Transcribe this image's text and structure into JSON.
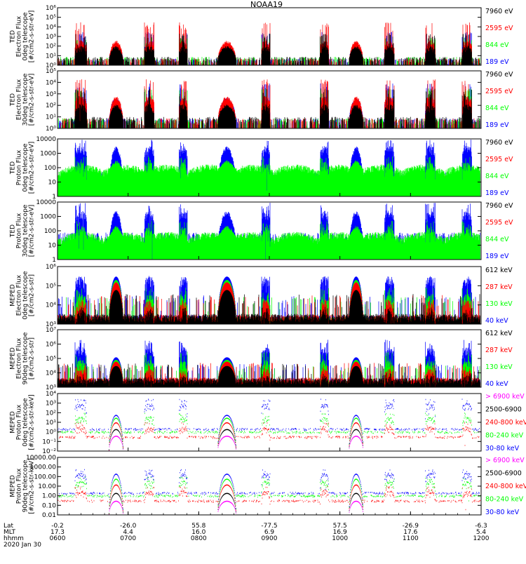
{
  "chart_data": {
    "type": "line",
    "title": "NOAA19",
    "colors": {
      "blue": "#0000ff",
      "red": "#ff0000",
      "green": "#00ff00",
      "black": "#000000",
      "magenta": "#ff00ff"
    },
    "x_axis": {
      "rows": [
        {
          "label": "Lat",
          "values": [
            "-0.2",
            "-26.0",
            "55.8",
            "-77.5",
            "57.5",
            "-26.9",
            "-6.3"
          ]
        },
        {
          "label": "MLT",
          "values": [
            "17.3",
            "4.4",
            "16.0",
            "6.9",
            "16.9",
            "17.6",
            "5.4"
          ]
        },
        {
          "label": "hhmm",
          "values": [
            "0600",
            "0700",
            "0800",
            "0900",
            "1000",
            "1100",
            "1200"
          ]
        }
      ],
      "date": "2020 Jan 30",
      "range_hours": [
        6,
        12
      ]
    },
    "passes": [
      {
        "center": 6.33,
        "width": 0.17,
        "type": "polar"
      },
      {
        "center": 6.83,
        "width": 0.2,
        "type": "saa"
      },
      {
        "center": 7.3,
        "width": 0.14,
        "type": "polar"
      },
      {
        "center": 7.78,
        "width": 0.12,
        "type": "polar"
      },
      {
        "center": 8.4,
        "width": 0.26,
        "type": "saa"
      },
      {
        "center": 8.95,
        "width": 0.12,
        "type": "polar"
      },
      {
        "center": 9.78,
        "width": 0.12,
        "type": "polar"
      },
      {
        "center": 10.23,
        "width": 0.2,
        "type": "saa"
      },
      {
        "center": 10.7,
        "width": 0.14,
        "type": "polar"
      },
      {
        "center": 11.28,
        "width": 0.14,
        "type": "polar"
      },
      {
        "center": 11.8,
        "width": 0.14,
        "type": "polar"
      }
    ],
    "panels": [
      {
        "ylabel": [
          "TED",
          "Electron Flux",
          "0deg telescope",
          "[#/cm2-s-str-eV]"
        ],
        "scale": "log",
        "ylim": [
          1,
          1000000
        ],
        "ticks": [
          1,
          10,
          100,
          1000,
          10000,
          100000,
          1000000
        ],
        "tick_format": "pow",
        "background": "none",
        "legend": [
          {
            "label": "7960 eV",
            "color": "#000000"
          },
          {
            "label": "2595 eV",
            "color": "#ff0000"
          },
          {
            "label": "844 eV",
            "color": "#00ff00"
          },
          {
            "label": "189 eV",
            "color": "#0000ff"
          }
        ],
        "series": [
          {
            "name": "189 eV",
            "color": "#0000ff",
            "bg": 2,
            "peak": 150,
            "spike": 3000
          },
          {
            "name": "844 eV",
            "color": "#00ff00",
            "bg": 3,
            "peak": 60,
            "spike": 800
          },
          {
            "name": "2595 eV",
            "color": "#ff0000",
            "bg": 2,
            "peak": 300,
            "spike": 30000
          },
          {
            "name": "7960 eV",
            "color": "#000000",
            "bg": 3,
            "peak": 80,
            "spike": 2000
          }
        ]
      },
      {
        "ylabel": [
          "TED",
          "Electron Flux",
          "30deg telescope",
          "[#/cm2-s-str-eV]"
        ],
        "scale": "log",
        "ylim": [
          1,
          100000
        ],
        "ticks": [
          1,
          10,
          100,
          1000,
          10000,
          100000
        ],
        "tick_format": "pow",
        "background": "none",
        "legend": [
          {
            "label": "7960 eV",
            "color": "#000000"
          },
          {
            "label": "2595 eV",
            "color": "#ff0000"
          },
          {
            "label": "844 eV",
            "color": "#00ff00"
          },
          {
            "label": "189 eV",
            "color": "#0000ff"
          }
        ],
        "series": [
          {
            "name": "189 eV",
            "color": "#0000ff",
            "bg": 3,
            "peak": 400,
            "spike": 8000
          },
          {
            "name": "844 eV",
            "color": "#00ff00",
            "bg": 3,
            "peak": 50,
            "spike": 3000
          },
          {
            "name": "2595 eV",
            "color": "#ff0000",
            "bg": 3,
            "peak": 500,
            "spike": 20000
          },
          {
            "name": "7960 eV",
            "color": "#000000",
            "bg": 4,
            "peak": 100,
            "spike": 3000
          }
        ]
      },
      {
        "ylabel": [
          "TED",
          "Proton Flux",
          "0deg telescope",
          "[#/cm2-s-str-eV]"
        ],
        "scale": "log",
        "ylim": [
          1,
          10000
        ],
        "ticks": [
          1,
          10,
          100,
          1000,
          10000
        ],
        "tick_format": "plain",
        "background": "wave",
        "legend": [
          {
            "label": "7960 eV",
            "color": "#000000"
          },
          {
            "label": "2595 eV",
            "color": "#ff0000"
          },
          {
            "label": "844 eV",
            "color": "#00ff00"
          },
          {
            "label": "189 eV",
            "color": "#0000ff"
          }
        ],
        "series": [
          {
            "name": "7960 eV",
            "color": "#000000",
            "bg": 8,
            "peak": 20,
            "spike": 60
          },
          {
            "name": "2595 eV",
            "color": "#ff0000",
            "bg": 15,
            "peak": 120,
            "spike": 300
          },
          {
            "name": "189 eV",
            "color": "#0000ff",
            "bg": 20,
            "peak": 2500,
            "spike": 9000
          },
          {
            "name": "844 eV",
            "color": "#00ff00",
            "bg": 80,
            "peak": 200,
            "spike": 600
          }
        ]
      },
      {
        "ylabel": [
          "TED",
          "Proton Flux",
          "30deg telescope",
          "[#/cm2-s-str-eV]"
        ],
        "scale": "log",
        "ylim": [
          1,
          10000
        ],
        "ticks": [
          1,
          10,
          100,
          1000,
          10000
        ],
        "tick_format": "plain",
        "background": "wave",
        "legend": [
          {
            "label": "7960 eV",
            "color": "#000000"
          },
          {
            "label": "2595 eV",
            "color": "#ff0000"
          },
          {
            "label": "844 eV",
            "color": "#00ff00"
          },
          {
            "label": "189 eV",
            "color": "#0000ff"
          }
        ],
        "series": [
          {
            "name": "189 eV",
            "color": "#0000ff",
            "bg": 30,
            "peak": 2000,
            "spike": 9000
          },
          {
            "name": "844 eV",
            "color": "#00ff00",
            "bg": 40,
            "peak": 150,
            "spike": 500
          }
        ]
      },
      {
        "ylabel": [
          "MEPED",
          "Electron Flux",
          "0deg telescope",
          "[#/cm2-s-str]"
        ],
        "scale": "log",
        "ylim": [
          1000,
          1000000
        ],
        "ticks": [
          1000,
          10000,
          100000,
          1000000
        ],
        "tick_format": "pow",
        "background": "floor",
        "legend": [
          {
            "label": "612 keV",
            "color": "#000000"
          },
          {
            "label": "287 keV",
            "color": "#ff0000"
          },
          {
            "label": "130 keV",
            "color": "#00ff00"
          },
          {
            "label": "40 keV",
            "color": "#0000ff"
          }
        ],
        "series": [
          {
            "name": "40 keV",
            "color": "#0000ff",
            "bg": 1500,
            "peak": 250000,
            "spike": 300000,
            "saa": 300000
          },
          {
            "name": "130 keV",
            "color": "#00ff00",
            "bg": 1300,
            "peak": 30000,
            "spike": 80000,
            "saa": 200000
          },
          {
            "name": "287 keV",
            "color": "#ff0000",
            "bg": 1600,
            "peak": 15000,
            "spike": 20000,
            "saa": 150000
          },
          {
            "name": "612 keV",
            "color": "#000000",
            "bg": 1800,
            "peak": 5000,
            "spike": 8000,
            "saa": 60000
          }
        ]
      },
      {
        "ylabel": [
          "MEPED",
          "Electron Flux",
          "90deg telescope",
          "[#/cm2-s-str]"
        ],
        "scale": "log",
        "ylim": [
          1000,
          10000000
        ],
        "ticks": [
          1000,
          10000,
          100000,
          1000000,
          10000000
        ],
        "tick_format": "pow",
        "background": "floor",
        "legend": [
          {
            "label": "612 keV",
            "color": "#000000"
          },
          {
            "label": "287 keV",
            "color": "#ff0000"
          },
          {
            "label": "130 keV",
            "color": "#00ff00"
          },
          {
            "label": "40 keV",
            "color": "#0000ff"
          }
        ],
        "series": [
          {
            "name": "40 keV",
            "color": "#0000ff",
            "bg": 2000,
            "peak": 500000,
            "spike": 2000000,
            "saa": 120000
          },
          {
            "name": "130 keV",
            "color": "#00ff00",
            "bg": 1600,
            "peak": 60000,
            "spike": 300000,
            "saa": 80000
          },
          {
            "name": "287 keV",
            "color": "#ff0000",
            "bg": 2500,
            "peak": 15000,
            "spike": 40000,
            "saa": 60000
          },
          {
            "name": "612 keV",
            "color": "#000000",
            "bg": 2200,
            "peak": 5000,
            "spike": 10000,
            "saa": 30000
          }
        ]
      },
      {
        "ylabel": [
          "MEPED",
          "Proton Flux",
          "0deg telescope",
          "[#/cm2-s-str-keV]"
        ],
        "scale": "log",
        "ylim": [
          0.01,
          10000
        ],
        "ticks": [
          0.01,
          0.1,
          1,
          10,
          100,
          1000,
          10000
        ],
        "tick_format": "pow",
        "background": "dots",
        "legend": [
          {
            "label": "> 6900 keV",
            "color": "#ff00ff"
          },
          {
            "label": "2500-6900",
            "color": "#000000"
          },
          {
            "label": "240-800 keV",
            "color": "#ff0000"
          },
          {
            "label": "80-240 keV",
            "color": "#00ff00"
          },
          {
            "label": "30-80 keV",
            "color": "#0000ff"
          }
        ],
        "series": [
          {
            "name": "30-80 keV",
            "color": "#0000ff",
            "bg": 2,
            "peak": 800,
            "spike": 3000,
            "saa": 60
          },
          {
            "name": "80-240 keV",
            "color": "#00ff00",
            "bg": 1,
            "peak": 30,
            "spike": 100,
            "saa": 30
          },
          {
            "name": "240-800 keV",
            "color": "#ff0000",
            "bg": 0.3,
            "peak": 3,
            "spike": 10,
            "saa": 10
          },
          {
            "name": "2500-6900",
            "color": "#000000",
            "bg": 0,
            "peak": 0,
            "spike": 0,
            "saa": 2
          },
          {
            "name": "> 6900 keV",
            "color": "#ff00ff",
            "bg": 0,
            "peak": 0,
            "spike": 0,
            "saa": 0.4
          }
        ]
      },
      {
        "ylabel": [
          "MEPED",
          "Proton Flux",
          "90deg telescope",
          "[#/cm2-s-str-keV]"
        ],
        "scale": "log",
        "ylim": [
          0.01,
          10000
        ],
        "ticks": [
          0.01,
          0.1,
          1,
          10,
          100,
          1000,
          10000
        ],
        "tick_labels": [
          "0.01",
          "0.10",
          "1.00",
          "10.00",
          "100.00",
          "1000.00",
          "10000.00"
        ],
        "tick_format": "plain",
        "background": "dots",
        "legend": [
          {
            "label": "> 6900 keV",
            "color": "#ff00ff"
          },
          {
            "label": "2500-6900",
            "color": "#000000"
          },
          {
            "label": "240-800 keV",
            "color": "#ff0000"
          },
          {
            "label": "80-240 keV",
            "color": "#00ff00"
          },
          {
            "label": "30-80 keV",
            "color": "#0000ff"
          }
        ],
        "series": [
          {
            "name": "30-80 keV",
            "color": "#0000ff",
            "bg": 2,
            "peak": 200,
            "spike": 600,
            "saa": 200
          },
          {
            "name": "80-240 keV",
            "color": "#00ff00",
            "bg": 1,
            "peak": 30,
            "spike": 100,
            "saa": 60
          },
          {
            "name": "240-800 keV",
            "color": "#ff0000",
            "bg": 0.3,
            "peak": 3,
            "spike": 10,
            "saa": 15
          },
          {
            "name": "2500-6900",
            "color": "#000000",
            "bg": 0,
            "peak": 0,
            "spike": 0,
            "saa": 2
          },
          {
            "name": "> 6900 keV",
            "color": "#ff00ff",
            "bg": 0,
            "peak": 0,
            "spike": 0,
            "saa": 0.3
          }
        ]
      }
    ]
  }
}
